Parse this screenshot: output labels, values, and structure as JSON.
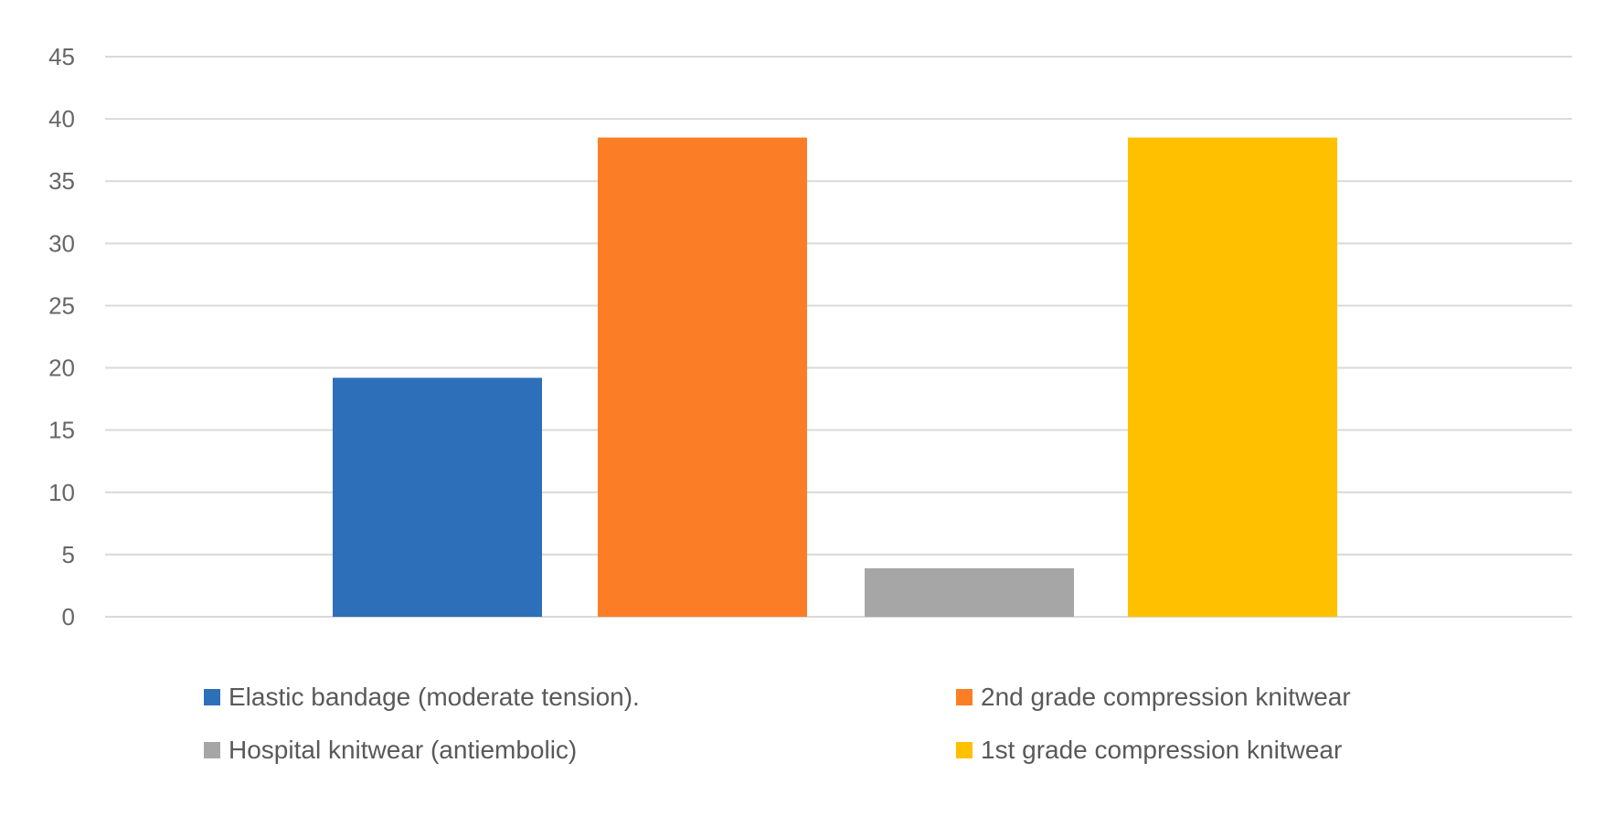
{
  "chart_data": {
    "type": "bar",
    "title": "",
    "xlabel": "",
    "ylabel": "",
    "ylim": [
      0,
      45
    ],
    "yticks": [
      0,
      5,
      10,
      15,
      20,
      25,
      30,
      35,
      40,
      45
    ],
    "grid": true,
    "legend_position": "bottom",
    "series": [
      {
        "name": "Elastic bandage (moderate tension).",
        "value": 19.2,
        "color": "#2e6fba"
      },
      {
        "name": "2nd grade compression knitwear",
        "value": 38.5,
        "color": "#fb7e26"
      },
      {
        "name": "Hospital knitwear (antiembolic)",
        "value": 3.9,
        "color": "#a6a6a6"
      },
      {
        "name": "1st grade compression knitwear",
        "value": 38.5,
        "color": "#ffc000"
      }
    ]
  }
}
